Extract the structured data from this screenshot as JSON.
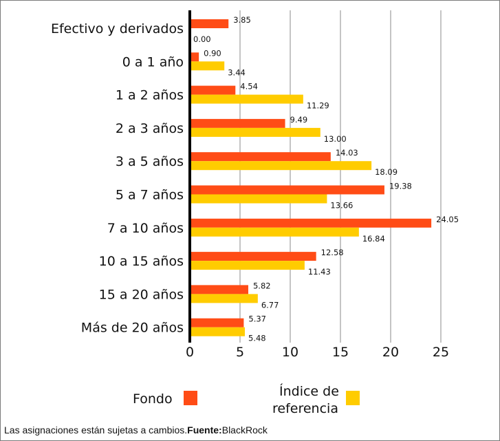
{
  "chart_data": {
    "type": "bar",
    "orientation": "horizontal",
    "categories": [
      "Efectivo y derivados",
      "0 a 1 año",
      "1 a 2 años",
      "2 a 3 años",
      "3 a 5 años",
      "5 a 7 años",
      "7 a 10 años",
      "10 a 15 años",
      "15 a 20 años",
      "Más de 20 años"
    ],
    "series": [
      {
        "name": "Fondo",
        "color": "#ff4c16",
        "values": [
          3.85,
          0.9,
          4.54,
          9.49,
          14.03,
          19.38,
          24.05,
          12.58,
          5.82,
          5.37
        ],
        "labels": [
          "3.85",
          "0.90",
          "4.54",
          "9.49",
          "14.03",
          "19.38",
          "24.05",
          "12.58",
          "5.82",
          "5.37"
        ]
      },
      {
        "name": "Índice de referencia",
        "color": "#ffcc00",
        "values": [
          0.0,
          3.44,
          11.29,
          13.0,
          18.09,
          13.66,
          16.84,
          11.43,
          6.77,
          5.48
        ],
        "labels": [
          "0.00",
          "3.44",
          "11.29",
          "13.00",
          "18.09",
          "13.66",
          "16.84",
          "11.43",
          "6.77",
          "5.48"
        ]
      }
    ],
    "xlim": [
      0,
      25
    ],
    "xticks": [
      "0",
      "5",
      "10",
      "15",
      "20",
      "25"
    ],
    "grid": "vertical",
    "legend": "bottom",
    "legend_labels": {
      "fondo": "Fondo",
      "indice_line1": "Índice de",
      "indice_line2": "referencia"
    }
  },
  "footer": {
    "text": "Las asignaciones están sujetas a cambios.",
    "source_label": "Fuente:",
    "source": "BlackRock"
  }
}
